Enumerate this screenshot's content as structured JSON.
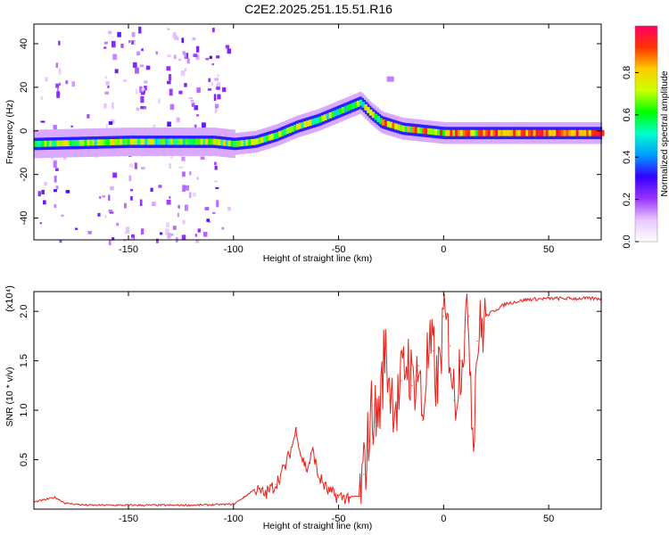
{
  "chart_data": [
    {
      "type": "heatmap",
      "title": "C2E2.2025.251.15.51.R16",
      "xlabel": "Height of straight line (km)",
      "ylabel": "Frequency (Hz)",
      "xlim": [
        -195,
        75
      ],
      "ylim": [
        -50,
        49
      ],
      "xticks": [
        -150,
        -100,
        -50,
        0,
        50
      ],
      "yticks": [
        -40,
        -20,
        0,
        20,
        40
      ],
      "ridge": {
        "x": [
          -195,
          -150,
          -110,
          -100,
          -90,
          -80,
          -70,
          -60,
          -50,
          -40,
          -35,
          -30,
          -20,
          -10,
          0,
          20,
          40,
          60,
          75
        ],
        "freq": [
          -6,
          -5,
          -5,
          -6,
          -5,
          -2,
          2,
          5,
          9,
          13,
          8,
          4,
          1,
          0,
          -1,
          -1,
          -1,
          -1,
          -1
        ]
      },
      "colorbar": {
        "label": "Normalized spectral amplitude",
        "range": [
          0,
          1
        ],
        "ticks": [
          "0.0",
          "0.2",
          "0.4",
          "0.6",
          "0.8"
        ],
        "colors": [
          "#ffffff",
          "#e9c8ff",
          "#9933ff",
          "#3300ff",
          "#0099ff",
          "#00ffcc",
          "#00ff00",
          "#ccff00",
          "#ffcc00",
          "#ff3300",
          "#ff0066"
        ]
      }
    },
    {
      "type": "line",
      "title": "",
      "xlabel": "Height of straight line (km)",
      "ylabel": "SNR (10 * v/v)",
      "scale_label": "(x10⁴)",
      "xlim": [
        -195,
        75
      ],
      "ylim": [
        0,
        2.2
      ],
      "xticks": [
        -150,
        -100,
        -50,
        0,
        50
      ],
      "yticks": [
        "0.5",
        "1.0",
        "1.5",
        "2.0"
      ],
      "line_color": "#e8201a",
      "series": [
        {
          "name": "SNR",
          "x": [
            -195,
            -185,
            -180,
            -170,
            -150,
            -120,
            -100,
            -95,
            -90,
            -85,
            -80,
            -75,
            -72,
            -70,
            -68,
            -65,
            -62,
            -60,
            -55,
            -50,
            -45,
            -40,
            -38,
            -36,
            -34,
            -32,
            -30,
            -28,
            -25,
            -22,
            -20,
            -17,
            -15,
            -12,
            -10,
            -8,
            -5,
            -3,
            0,
            3,
            5,
            8,
            10,
            12,
            14,
            16,
            20,
            25,
            30,
            40,
            50,
            60,
            75
          ],
          "y": [
            0.07,
            0.12,
            0.06,
            0.04,
            0.04,
            0.04,
            0.05,
            0.12,
            0.2,
            0.15,
            0.25,
            0.45,
            0.65,
            0.82,
            0.55,
            0.4,
            0.6,
            0.35,
            0.18,
            0.12,
            0.12,
            0.13,
            0.35,
            0.7,
            1.05,
            0.9,
            1.1,
            1.62,
            1.2,
            1.05,
            1.3,
            1.55,
            1.25,
            1.45,
            0.9,
            1.5,
            1.6,
            1.2,
            1.95,
            1.65,
            1.1,
            1.5,
            1.8,
            1.95,
            0.72,
            1.7,
            1.95,
            2.02,
            2.08,
            2.12,
            2.13,
            2.13,
            2.13
          ]
        }
      ]
    }
  ]
}
